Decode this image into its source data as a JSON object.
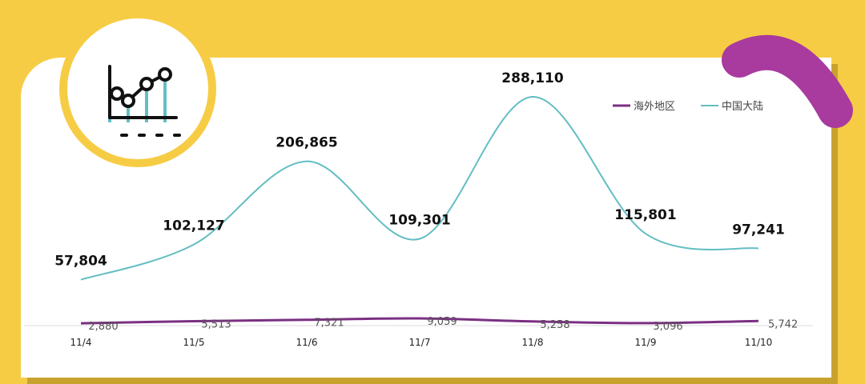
{
  "colors": {
    "background": "#F7CC45",
    "card": "#FFFFFF",
    "accent_arc": "#A93A9E",
    "series_overseas": "#7B2F82",
    "series_mainland": "#63BEC3"
  },
  "icons": {
    "badge": "line-chart-icon",
    "decoration": "curved-arc-shape"
  },
  "chart_data": {
    "type": "line",
    "categories": [
      "11/4",
      "11/5",
      "11/6",
      "11/7",
      "11/8",
      "11/9",
      "11/10"
    ],
    "series": [
      {
        "name": "海外地区",
        "values": [
          2880,
          5513,
          7321,
          9059,
          5258,
          3096,
          5742
        ]
      },
      {
        "name": "中国大陆",
        "values": [
          57804,
          102127,
          206865,
          109301,
          288110,
          115801,
          97241
        ]
      }
    ],
    "value_labels": {
      "海外地区": [
        "2,880",
        "5,513",
        "7,321",
        "9,059",
        "5,258",
        "3,096",
        "5,742"
      ],
      "中国大陆": [
        "57,804",
        "102,127",
        "206,865",
        "109,301",
        "288,110",
        "115,801",
        "97,241"
      ]
    },
    "smooth": true,
    "grid": false,
    "legend_position": "top-right",
    "ylim": [
      0,
      400000
    ]
  }
}
